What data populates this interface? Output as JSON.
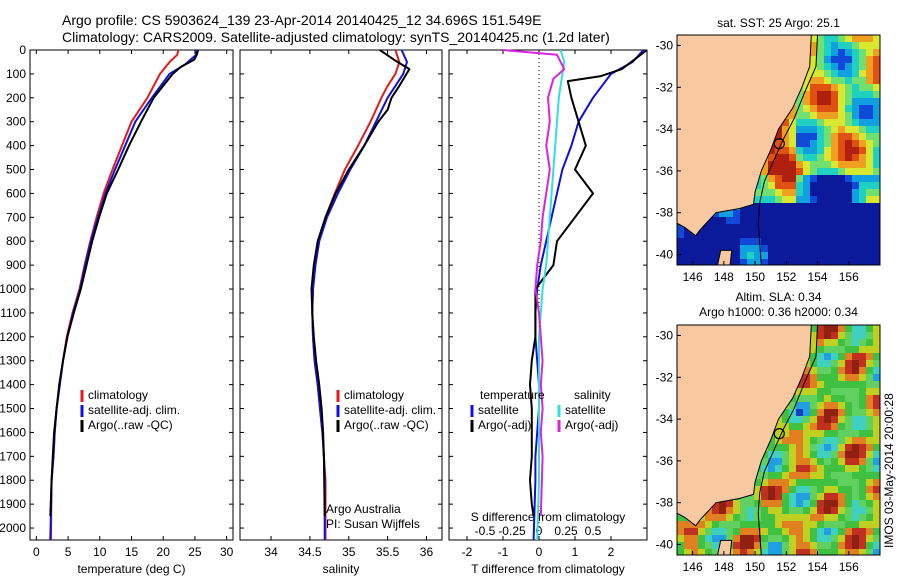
{
  "title": {
    "line1": "Argo profile: CS 5903624_139 23-Apr-2014 20140425_12 34.696S 151.549E",
    "line2": "Climatology: CARS2009. Satellite-adjusted climatology: synTS_20140425.nc (1.2d later)"
  },
  "colors": {
    "climatology": "#e41a1c",
    "satellite": "#1010dd",
    "argo": "#000000",
    "satellite_s": "#30e0e0",
    "argo_s": "#dd22dd",
    "land": "#f8c8a0"
  },
  "depth_axis": {
    "ylim": [
      0,
      2050
    ],
    "ticks": [
      0,
      100,
      200,
      300,
      400,
      500,
      600,
      700,
      800,
      900,
      1000,
      1100,
      1200,
      1300,
      1400,
      1500,
      1600,
      1700,
      1800,
      1900,
      2000
    ]
  },
  "chart_data": [
    {
      "type": "line",
      "xlabel": "temperature (deg C)",
      "xlim": [
        -1,
        31
      ],
      "xticks": [
        0,
        5,
        10,
        15,
        20,
        25,
        30
      ],
      "legend": {
        "position": "lower-middle",
        "entries": [
          {
            "label": "climatology",
            "color_key": "climatology"
          },
          {
            "label": "satellite-adj. clim.",
            "color_key": "satellite"
          },
          {
            "label": "Argo(..raw -QC)",
            "color_key": "argo"
          }
        ]
      },
      "series": [
        {
          "name": "climatology",
          "color_key": "climatology",
          "x": [
            22.4,
            22.2,
            21.0,
            19.5,
            17.5,
            15.0,
            13.5,
            12.0,
            10.6,
            9.5,
            8.5,
            7.6,
            6.8,
            5.7,
            4.8,
            4.2,
            3.7,
            3.2,
            2.9,
            2.7,
            2.4,
            2.3
          ],
          "y": [
            0,
            20,
            50,
            100,
            200,
            300,
            400,
            500,
            600,
            700,
            800,
            900,
            1000,
            1100,
            1200,
            1300,
            1400,
            1500,
            1600,
            1700,
            1800,
            2050
          ]
        },
        {
          "name": "satellite-adj. clim.",
          "color_key": "satellite",
          "x": [
            25.3,
            25.2,
            23.5,
            21.0,
            18.2,
            15.6,
            14.0,
            12.4,
            10.9,
            9.7,
            8.6,
            7.7,
            6.9,
            5.8,
            4.9,
            4.2,
            3.7,
            3.2,
            2.9,
            2.7,
            2.4,
            2.2
          ],
          "y": [
            0,
            20,
            60,
            100,
            200,
            300,
            400,
            500,
            600,
            700,
            800,
            900,
            1000,
            1100,
            1200,
            1300,
            1400,
            1500,
            1600,
            1700,
            1800,
            2050
          ]
        },
        {
          "name": "Argo(..raw -QC)",
          "color_key": "argo",
          "x": [
            25.5,
            25.3,
            24.9,
            22.8,
            21.5,
            18.5,
            16.5,
            14.6,
            12.9,
            11.1,
            9.9,
            8.8,
            7.9,
            7.0,
            5.9,
            4.9,
            4.2,
            3.6,
            3.2,
            2.8,
            2.6,
            2.4,
            2.2
          ],
          "y": [
            0,
            20,
            40,
            70,
            100,
            200,
            300,
            400,
            500,
            600,
            700,
            800,
            900,
            1000,
            1100,
            1200,
            1300,
            1400,
            1500,
            1600,
            1700,
            1800,
            1950
          ]
        }
      ]
    },
    {
      "type": "line",
      "xlabel": "salinity",
      "xlim": [
        33.6,
        36.2
      ],
      "xticks": [
        34,
        34.5,
        35,
        35.5,
        36
      ],
      "legend": {
        "position": "lower-middle",
        "entries": [
          {
            "label": "climatology",
            "color_key": "climatology"
          },
          {
            "label": "satellite-adj. clim.",
            "color_key": "satellite"
          },
          {
            "label": "Argo(..raw -QC)",
            "color_key": "argo"
          }
        ]
      },
      "annotations": [
        "Argo Australia",
        "PI: Susan Wijffels"
      ],
      "series": [
        {
          "name": "climatology",
          "color_key": "climatology",
          "x": [
            35.6,
            35.65,
            35.6,
            35.5,
            35.42,
            35.28,
            35.12,
            34.95,
            34.82,
            34.7,
            34.62,
            34.57,
            34.54,
            34.53,
            34.54,
            34.56,
            34.6,
            34.63,
            34.66,
            34.68,
            34.7,
            34.7
          ],
          "y": [
            0,
            50,
            100,
            150,
            200,
            300,
            400,
            500,
            600,
            700,
            800,
            900,
            1000,
            1100,
            1200,
            1300,
            1400,
            1500,
            1600,
            1700,
            1800,
            2050
          ]
        },
        {
          "name": "satellite-adj. clim.",
          "color_key": "satellite",
          "x": [
            35.68,
            35.75,
            35.7,
            35.6,
            35.5,
            35.35,
            35.2,
            35.02,
            34.86,
            34.72,
            34.62,
            34.57,
            34.54,
            34.53,
            34.54,
            34.56,
            34.6,
            34.63,
            34.66,
            34.68,
            34.69,
            34.69
          ],
          "y": [
            0,
            50,
            100,
            150,
            200,
            300,
            400,
            500,
            600,
            700,
            800,
            900,
            1000,
            1100,
            1200,
            1300,
            1400,
            1500,
            1600,
            1700,
            1800,
            2050
          ]
        },
        {
          "name": "Argo(..raw -QC)",
          "color_key": "argo",
          "x": [
            35.4,
            35.58,
            35.78,
            35.65,
            35.55,
            35.5,
            35.38,
            35.2,
            35.0,
            34.83,
            34.7,
            34.6,
            34.55,
            34.52,
            34.53,
            34.55,
            34.58,
            34.62,
            34.65,
            34.67,
            34.68,
            34.69
          ],
          "y": [
            0,
            40,
            80,
            150,
            200,
            250,
            300,
            400,
            500,
            600,
            700,
            800,
            900,
            1000,
            1100,
            1200,
            1300,
            1400,
            1500,
            1600,
            1700,
            1950
          ]
        }
      ]
    },
    {
      "type": "line",
      "xlabel": "T difference from climatology",
      "xlabel2": "S difference from climatology",
      "xlim": [
        -2.5,
        3.0
      ],
      "xticks": [
        -2,
        -1,
        0,
        1,
        2
      ],
      "xticks2": [
        {
          "v": -1.5,
          "label": "-0.5"
        },
        {
          "v": -0.75,
          "label": "-0.25"
        },
        {
          "v": 0,
          "label": "0"
        },
        {
          "v": 0.75,
          "label": "0.25"
        },
        {
          "v": 1.5,
          "label": "0.5"
        }
      ],
      "legend": {
        "position": "lower",
        "groups": [
          {
            "title": "temperature",
            "entries": [
              {
                "label": "satellite",
                "color_key": "satellite"
              },
              {
                "label": "Argo(-adj)",
                "color_key": "argo"
              }
            ]
          },
          {
            "title": "salinity",
            "entries": [
              {
                "label": "satellite",
                "color_key": "satellite_s"
              },
              {
                "label": "Argo(-adj)",
                "color_key": "argo_s"
              }
            ]
          }
        ]
      },
      "series": [
        {
          "name": "T satellite",
          "color_key": "satellite",
          "x": [
            2.9,
            2.6,
            2.0,
            1.5,
            1.1,
            0.9,
            0.65,
            0.5,
            0.35,
            0.2,
            0.05,
            -0.05,
            -0.1,
            -0.1,
            -0.05,
            0.0,
            0.0,
            -0.05,
            -0.1,
            -0.1,
            -0.15
          ],
          "y": [
            0,
            50,
            100,
            200,
            300,
            400,
            500,
            600,
            700,
            800,
            900,
            1000,
            1100,
            1200,
            1300,
            1400,
            1500,
            1600,
            1700,
            1800,
            2050
          ]
        },
        {
          "name": "T Argo(-adj)",
          "color_key": "argo",
          "x": [
            3.0,
            2.3,
            1.7,
            0.8,
            0.9,
            1.1,
            1.3,
            1.0,
            1.5,
            1.0,
            0.5,
            0.4,
            -0.1,
            -0.1,
            -0.2,
            -0.25,
            -0.2,
            -0.2,
            -0.2,
            -0.25,
            -0.2,
            -0.15
          ],
          "y": [
            0,
            80,
            110,
            130,
            200,
            300,
            400,
            500,
            600,
            700,
            800,
            900,
            1000,
            1200,
            1300,
            1400,
            1500,
            1600,
            1700,
            1800,
            1900,
            1950
          ]
        },
        {
          "name": "S satellite",
          "color_key": "satellite_s",
          "x": [
            0.6,
            0.7,
            0.65,
            0.55,
            0.5,
            0.45,
            0.4,
            0.35,
            0.3,
            0.25,
            0.2,
            0.1,
            0.05,
            0.0,
            0.0,
            0.0,
            0.0,
            0.0,
            0.0,
            0.0,
            -0.05
          ],
          "y": [
            0,
            50,
            100,
            200,
            300,
            400,
            500,
            600,
            700,
            800,
            900,
            1000,
            1100,
            1200,
            1300,
            1400,
            1500,
            1600,
            1700,
            1800,
            2050
          ]
        },
        {
          "name": "S Argo(-adj)",
          "color_key": "argo_s",
          "x": [
            -1.0,
            0.5,
            0.7,
            0.4,
            0.25,
            0.3,
            0.2,
            0.3,
            0.2,
            0.1,
            0.05,
            -0.05,
            -0.1,
            0.0,
            0.05,
            0.1,
            0.05,
            0.1,
            0.05,
            0.1,
            0.05
          ],
          "y": [
            0,
            20,
            80,
            120,
            200,
            300,
            400,
            500,
            600,
            700,
            800,
            900,
            1000,
            1100,
            1200,
            1300,
            1400,
            1500,
            1600,
            1700,
            1950
          ]
        }
      ]
    },
    {
      "type": "heatmap",
      "title": "sat. SST: 25 Argo: 25.1",
      "xlim": [
        145,
        158
      ],
      "ylim": [
        -40.5,
        -29.5
      ],
      "xticks": [
        146,
        148,
        150,
        152,
        154,
        156
      ],
      "yticks": [
        -30,
        -32,
        -34,
        -36,
        -38,
        -40
      ],
      "marker": {
        "lon": 151.549,
        "lat": -34.696
      }
    },
    {
      "type": "heatmap",
      "title": "Altim. SLA: 0.34",
      "subtitle": "Argo h1000: 0.36 h2000: 0.34",
      "xlim": [
        145,
        158
      ],
      "ylim": [
        -40.5,
        -29.5
      ],
      "xticks": [
        146,
        148,
        150,
        152,
        154,
        156
      ],
      "yticks": [
        -30,
        -32,
        -34,
        -36,
        -38,
        -40
      ],
      "marker": {
        "lon": 151.549,
        "lat": -34.696
      }
    }
  ],
  "stamp": "IMOS 03-May-2014 20:00:28"
}
